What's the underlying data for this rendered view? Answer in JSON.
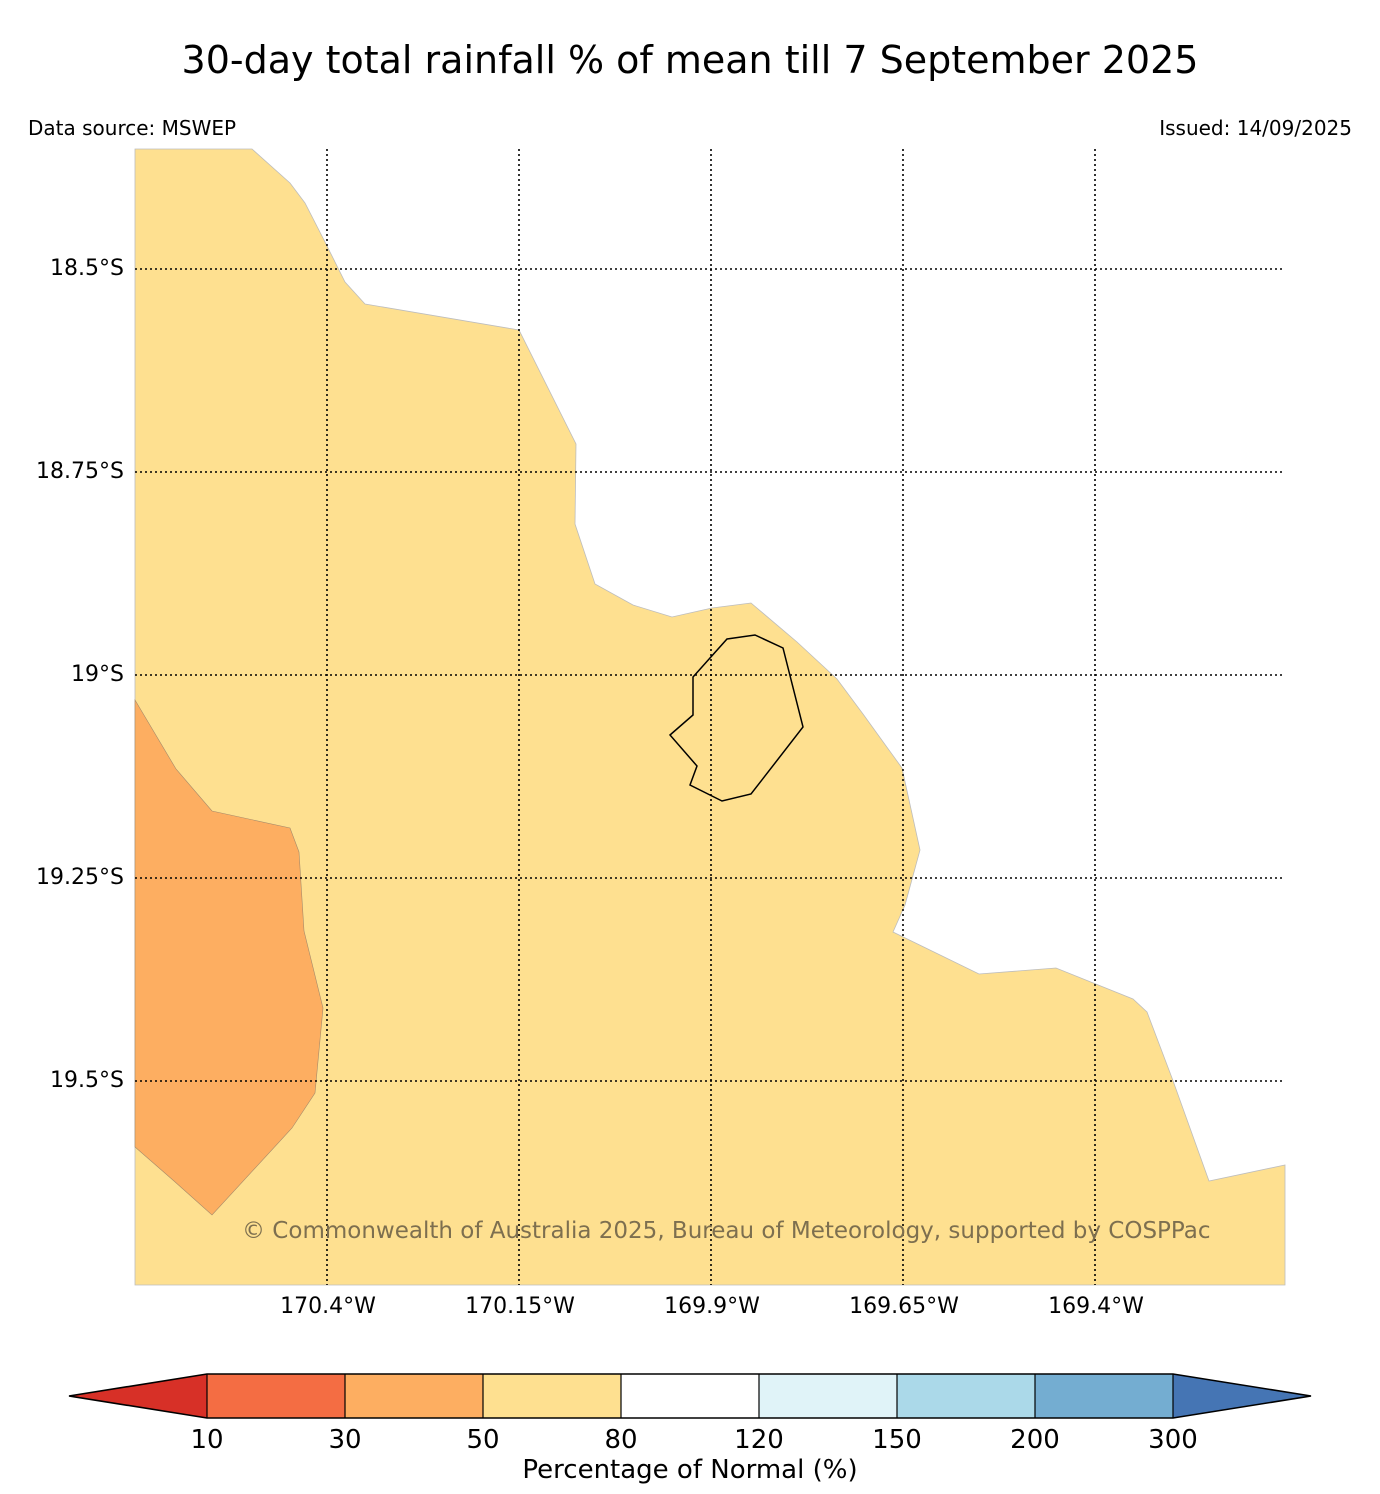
{
  "title": "30-day total rainfall % of mean till 7 September 2025",
  "data_source": "Data source: MSWEP",
  "issued": "Issued: 14/09/2025",
  "copyright": "© Commonwealth of Australia 2025, Bureau of Meteorology, supported by COSPPac",
  "latitude_labels": [
    "18.5°S",
    "18.75°S",
    "19°S",
    "19.25°S",
    "19.5°S"
  ],
  "longitude_labels": [
    "170.4°W",
    "170.15°W",
    "169.9°W",
    "169.65°W",
    "169.4°W"
  ],
  "legend": {
    "title": "Percentage of Normal (%)",
    "ticks": [
      "10",
      "30",
      "50",
      "80",
      "120",
      "150",
      "200",
      "300"
    ],
    "colors": [
      "#d73027",
      "#f46d43",
      "#fdae61",
      "#fee090",
      "#ffffff",
      "#e0f3f8",
      "#abd9e9",
      "#74add1",
      "#4575b4"
    ]
  },
  "map": {
    "land_outline": "Niue island coastline",
    "regions": [
      {
        "category": "50-80",
        "color": "#fee090"
      },
      {
        "category": "30-50",
        "color": "#fdae61"
      }
    ]
  }
}
